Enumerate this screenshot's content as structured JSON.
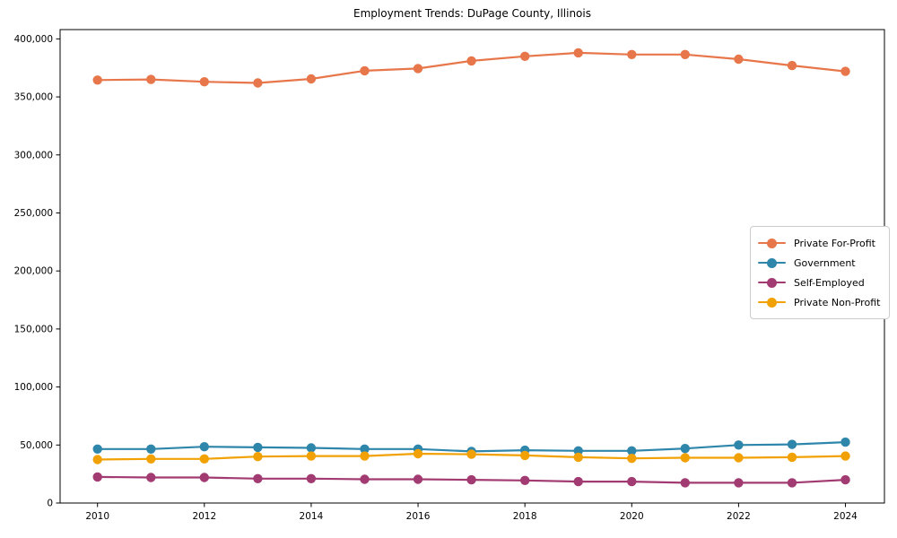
{
  "chart": {
    "title": "Employment Trends: DuPage County, Illinois"
  },
  "chart_data": {
    "type": "line",
    "title": "Employment Trends: DuPage County, Illinois",
    "xlabel": "",
    "ylabel": "",
    "grid": false,
    "legend_position": "center-right",
    "x": [
      2010,
      2011,
      2012,
      2013,
      2014,
      2015,
      2016,
      2017,
      2018,
      2019,
      2020,
      2021,
      2022,
      2023,
      2024
    ],
    "series": [
      {
        "name": "Private For-Profit",
        "color": "#E8764B",
        "values": [
          364500,
          365000,
          363000,
          362000,
          365500,
          372500,
          374500,
          381000,
          385000,
          388000,
          386500,
          386500,
          382500,
          377000,
          372000
        ]
      },
      {
        "name": "Government",
        "color": "#2E86AB",
        "values": [
          46500,
          46500,
          48500,
          48000,
          47500,
          46500,
          46500,
          44500,
          45500,
          45000,
          45000,
          47000,
          50000,
          50500,
          52500
        ]
      },
      {
        "name": "Self-Employed",
        "color": "#A23B72",
        "values": [
          22500,
          22000,
          22000,
          21000,
          21000,
          20500,
          20500,
          20000,
          19500,
          18500,
          18500,
          17500,
          17500,
          17500,
          20000
        ]
      },
      {
        "name": "Private Non-Profit",
        "color": "#F2A104",
        "values": [
          37500,
          38000,
          38000,
          40000,
          40500,
          40500,
          42500,
          42000,
          41000,
          39500,
          38500,
          39000,
          39000,
          39500,
          40500
        ]
      }
    ],
    "xlim": [
      2009.3,
      2024.73
    ],
    "ylim": [
      0,
      408000
    ],
    "xticks": [
      2010,
      2012,
      2014,
      2016,
      2018,
      2020,
      2022,
      2024
    ],
    "yticks": [
      0,
      50000,
      100000,
      150000,
      200000,
      250000,
      300000,
      350000,
      400000
    ],
    "ytick_labels": [
      "0",
      "50,000",
      "100,000",
      "150,000",
      "200,000",
      "250,000",
      "300,000",
      "350,000",
      "400,000"
    ]
  }
}
